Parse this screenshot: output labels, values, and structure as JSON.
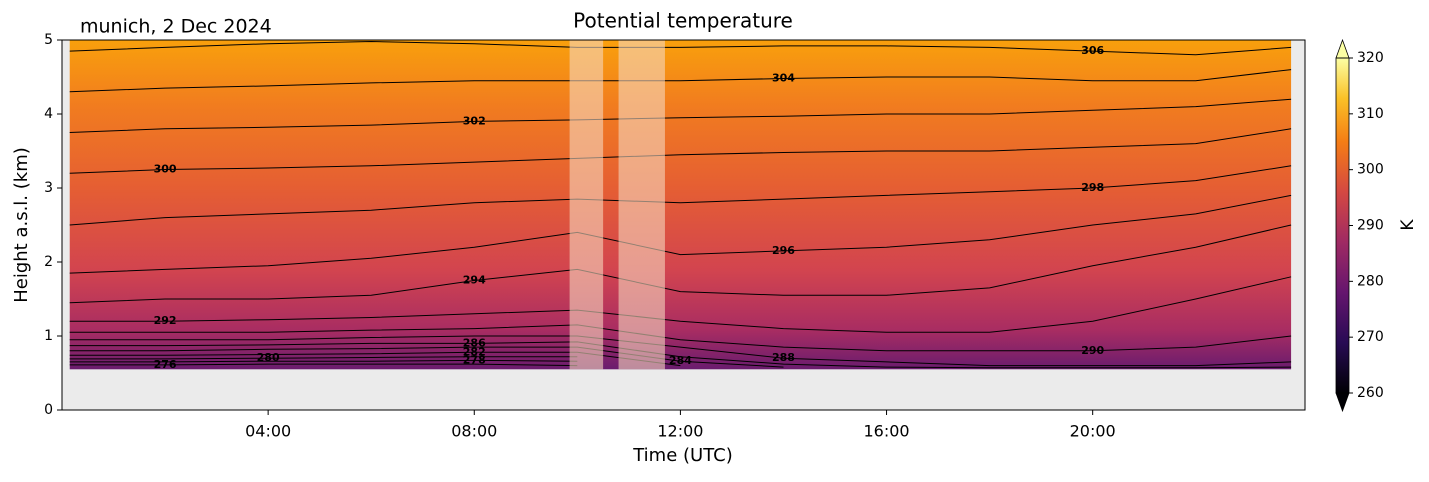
{
  "chart_data": {
    "type": "contour",
    "title": "Potential temperature",
    "location_label": "munich, 2 Dec 2024",
    "xlabel": "Time (UTC)",
    "ylabel": "Height a.s.l. (km)",
    "xlim": [
      0,
      24.12
    ],
    "xticks": [
      {
        "value": 4,
        "label": "04:00"
      },
      {
        "value": 8,
        "label": "08:00"
      },
      {
        "value": 12,
        "label": "12:00"
      },
      {
        "value": 16,
        "label": "16:00"
      },
      {
        "value": 20,
        "label": "20:00"
      }
    ],
    "ylim": [
      0,
      5
    ],
    "yticks": [
      0,
      1,
      2,
      3,
      4,
      5
    ],
    "surface_height": 0.55,
    "masked_intervals": [
      [
        9.85,
        10.5
      ],
      [
        10.8,
        11.7
      ]
    ],
    "x": [
      0.15,
      2,
      4,
      6,
      8,
      10,
      12,
      14,
      16,
      18,
      20,
      22,
      23.85
    ],
    "contours": [
      {
        "level": 276,
        "heights": [
          0.61,
          0.61,
          0.62,
          0.62,
          0.62,
          0.6,
          null,
          null,
          null,
          null,
          null,
          null,
          null
        ]
      },
      {
        "level": 278,
        "heights": [
          0.65,
          0.65,
          0.66,
          0.66,
          0.67,
          0.66,
          null,
          null,
          null,
          null,
          null,
          null,
          null
        ]
      },
      {
        "level": 280,
        "heights": [
          0.69,
          0.69,
          0.7,
          0.71,
          0.72,
          0.72,
          null,
          null,
          null,
          null,
          null,
          null,
          null
        ]
      },
      {
        "level": 282,
        "heights": [
          0.74,
          0.74,
          0.75,
          0.76,
          0.78,
          0.78,
          0.6,
          null,
          null,
          null,
          null,
          null,
          null
        ]
      },
      {
        "level": 284,
        "heights": [
          0.8,
          0.8,
          0.82,
          0.83,
          0.85,
          0.85,
          0.66,
          0.58,
          null,
          null,
          null,
          null,
          null
        ]
      },
      {
        "level": 286,
        "heights": [
          0.87,
          0.87,
          0.88,
          0.9,
          0.9,
          0.92,
          0.72,
          0.62,
          0.58,
          0.57,
          0.57,
          0.57,
          0.58
        ]
      },
      {
        "level": 288,
        "heights": [
          0.95,
          0.95,
          0.95,
          0.98,
          1.0,
          1.0,
          0.85,
          0.7,
          0.65,
          0.6,
          0.6,
          0.6,
          0.65
        ]
      },
      {
        "level": 290,
        "heights": [
          1.05,
          1.05,
          1.05,
          1.08,
          1.1,
          1.15,
          0.95,
          0.85,
          0.8,
          0.8,
          0.8,
          0.85,
          1.0
        ]
      },
      {
        "level": 292,
        "heights": [
          1.2,
          1.2,
          1.22,
          1.25,
          1.3,
          1.35,
          1.2,
          1.1,
          1.05,
          1.05,
          1.2,
          1.5,
          1.8
        ]
      },
      {
        "level": 294,
        "heights": [
          1.45,
          1.5,
          1.5,
          1.55,
          1.75,
          1.9,
          1.6,
          1.55,
          1.55,
          1.65,
          1.95,
          2.2,
          2.5
        ]
      },
      {
        "level": 296,
        "heights": [
          1.85,
          1.9,
          1.95,
          2.05,
          2.2,
          2.4,
          2.1,
          2.15,
          2.2,
          2.3,
          2.5,
          2.65,
          2.9
        ]
      },
      {
        "level": 298,
        "heights": [
          2.5,
          2.6,
          2.65,
          2.7,
          2.8,
          2.85,
          2.8,
          2.85,
          2.9,
          2.95,
          3.0,
          3.1,
          3.3
        ]
      },
      {
        "level": 300,
        "heights": [
          3.2,
          3.25,
          3.27,
          3.3,
          3.35,
          3.4,
          3.45,
          3.48,
          3.5,
          3.5,
          3.55,
          3.6,
          3.8
        ]
      },
      {
        "level": 302,
        "heights": [
          3.75,
          3.8,
          3.82,
          3.85,
          3.9,
          3.92,
          3.95,
          3.97,
          4.0,
          4.0,
          4.05,
          4.1,
          4.2
        ]
      },
      {
        "level": 304,
        "heights": [
          4.3,
          4.35,
          4.38,
          4.42,
          4.45,
          4.45,
          4.45,
          4.48,
          4.5,
          4.5,
          4.45,
          4.45,
          4.6
        ]
      },
      {
        "level": 306,
        "heights": [
          4.85,
          4.9,
          4.95,
          4.98,
          4.95,
          4.9,
          4.9,
          4.92,
          4.92,
          4.9,
          4.85,
          4.8,
          4.9
        ]
      }
    ],
    "colorbar": {
      "label": "K",
      "clim": [
        260,
        320
      ],
      "ticks": [
        260,
        270,
        280,
        290,
        300,
        310,
        320
      ]
    }
  }
}
